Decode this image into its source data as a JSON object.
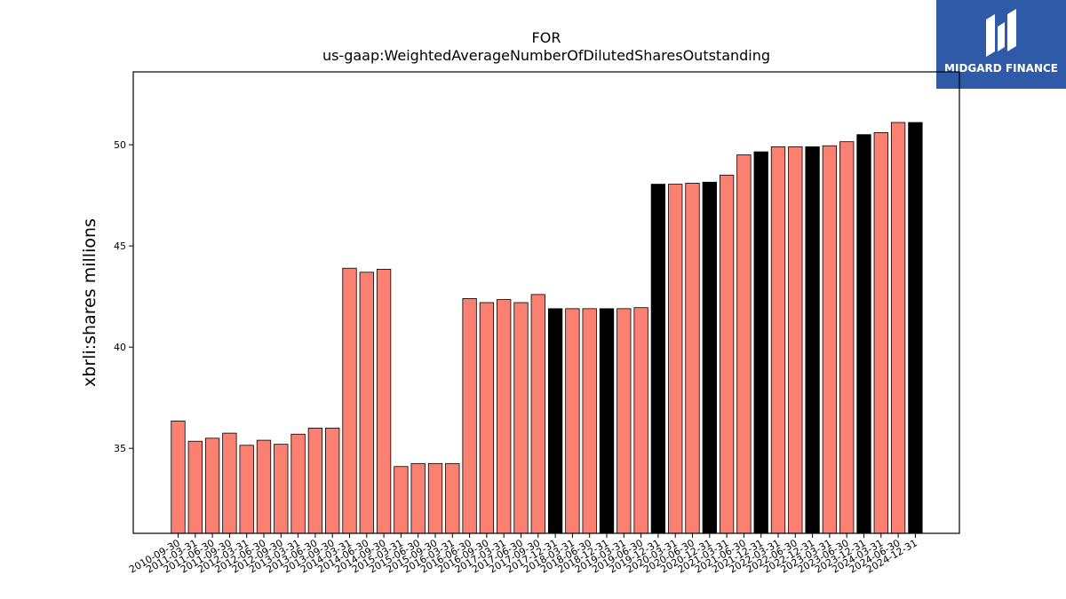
{
  "logo": {
    "text": "MIDGARD FINANCE"
  },
  "colors": {
    "primary_bar": "#fa8072",
    "highlight_bar": "#000000",
    "logo_bg": "#2f5aa8"
  },
  "chart_data": {
    "type": "bar",
    "title_line1": "FOR",
    "title_line2": "us-gaap:WeightedAverageNumberOfDilutedSharesOutstanding",
    "xlabel": "",
    "ylabel": "xbrli:shares millions",
    "ylim": [
      30.8,
      53.6
    ],
    "yticks": [
      35,
      40,
      45,
      50
    ],
    "grid": false,
    "categories": [
      "2010-09-30",
      "2011-03-31",
      "2011-06-30",
      "2011-09-30",
      "2012-03-31",
      "2012-06-30",
      "2012-09-30",
      "2013-03-31",
      "2013-06-30",
      "2013-09-30",
      "2014-03-31",
      "2014-06-30",
      "2014-09-30",
      "2015-03-31",
      "2015-06-30",
      "2015-09-30",
      "2016-03-31",
      "2016-06-30",
      "2016-09-30",
      "2017-03-31",
      "2017-06-30",
      "2017-09-30",
      "2017-12-31",
      "2018-03-31",
      "2018-06-30",
      "2018-12-31",
      "2019-03-31",
      "2019-06-30",
      "2019-12-31",
      "2020-03-31",
      "2020-06-30",
      "2020-12-31",
      "2021-03-31",
      "2021-06-30",
      "2021-12-31",
      "2022-03-31",
      "2022-06-30",
      "2022-12-31",
      "2023-03-31",
      "2023-06-30",
      "2023-12-31",
      "2024-03-31",
      "2024-06-30",
      "2024-12-31"
    ],
    "values": [
      36.35,
      35.35,
      35.5,
      35.75,
      35.15,
      35.4,
      35.2,
      35.7,
      36.0,
      36.0,
      43.9,
      43.7,
      43.85,
      34.1,
      34.25,
      34.25,
      34.25,
      42.4,
      42.2,
      42.35,
      42.2,
      42.6,
      41.9,
      41.9,
      41.9,
      41.9,
      41.9,
      41.95,
      48.05,
      48.05,
      48.1,
      48.15,
      48.5,
      49.5,
      49.65,
      49.9,
      49.9,
      49.9,
      49.95,
      50.15,
      50.5,
      50.6,
      51.1,
      51.1
    ],
    "highlighted": [
      false,
      false,
      false,
      false,
      false,
      false,
      false,
      false,
      false,
      false,
      false,
      false,
      false,
      false,
      false,
      false,
      false,
      false,
      false,
      false,
      false,
      false,
      true,
      false,
      false,
      true,
      false,
      false,
      true,
      false,
      false,
      true,
      false,
      false,
      true,
      false,
      false,
      true,
      false,
      false,
      true,
      false,
      false,
      true
    ]
  }
}
